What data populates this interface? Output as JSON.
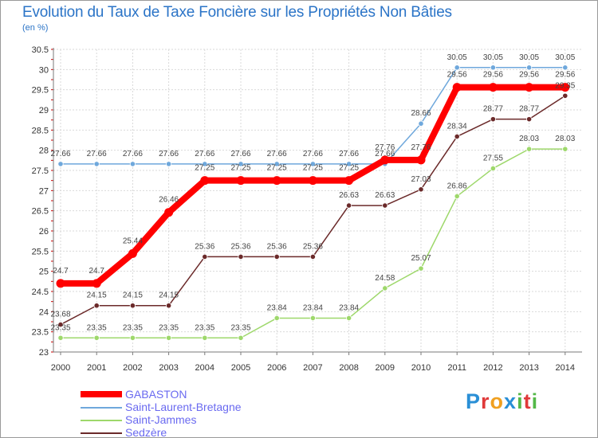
{
  "title": "Evolution du Taux de Taxe Foncière sur les Propriétés Non Bâties",
  "unit": "(en %)",
  "brand": {
    "letters": [
      "P",
      "r",
      "o",
      "x",
      "i",
      "t",
      "i"
    ]
  },
  "colors": {
    "gabaston": "#ff0000",
    "saint_laurent": "#6fa8dc",
    "saint_jammes": "#9ed86b",
    "sedzere": "#6b2a2a",
    "grid": "#d9d9d9",
    "axis": "#7a7a7a",
    "brand": [
      "#2a8fd6",
      "#e03a3a",
      "#f0a020",
      "#2a8fd6",
      "#54b848",
      "#e03a3a",
      "#54b848"
    ]
  },
  "chart_data": {
    "type": "line",
    "title": "Evolution du Taux de Taxe Foncière sur les Propriétés Non Bâties",
    "ylabel": "(en %)",
    "xlabel": "",
    "ylim": [
      23,
      30.5
    ],
    "ytick_labels": [
      "23",
      "23.5",
      "24",
      "24.5",
      "25",
      "25.5",
      "26",
      "26.5",
      "27",
      "27.5",
      "28",
      "28.5",
      "29",
      "29.5",
      "30",
      "30.5"
    ],
    "categories": [
      "2000",
      "2001",
      "2002",
      "2003",
      "2004",
      "2005",
      "2006",
      "2007",
      "2008",
      "2009",
      "2010",
      "2011",
      "2012",
      "2013",
      "2014"
    ],
    "series": [
      {
        "key": "saint_laurent",
        "name": "Saint-Laurent-Bretagne",
        "values": [
          27.66,
          27.66,
          27.66,
          27.66,
          27.66,
          27.66,
          27.66,
          27.66,
          27.66,
          27.66,
          28.66,
          30.05,
          30.05,
          30.05,
          30.05
        ],
        "labels": [
          "27.66",
          "27.66",
          "27.66",
          "27.66",
          "27.66",
          "27.66",
          "27.66",
          "27.66",
          "27.66",
          "27.66",
          "28.66",
          "30.05",
          "30.05",
          "30.05",
          "30.05"
        ]
      },
      {
        "key": "saint_jammes",
        "name": "Saint-Jammes",
        "values": [
          23.35,
          23.35,
          23.35,
          23.35,
          23.35,
          23.35,
          23.84,
          23.84,
          23.84,
          24.58,
          25.07,
          26.86,
          27.55,
          28.03,
          28.03
        ],
        "labels": [
          "23.35",
          "23.35",
          "23.35",
          "23.35",
          "23.35",
          "23.35",
          "23.84",
          "23.84",
          "23.84",
          "24.58",
          "25.07",
          "26.86",
          "27.55",
          "28.03",
          "28.03"
        ]
      },
      {
        "key": "sedzere",
        "name": "Sedzère",
        "values": [
          23.68,
          24.15,
          24.15,
          24.15,
          25.36,
          25.36,
          25.36,
          25.36,
          26.63,
          26.63,
          27.03,
          28.34,
          28.77,
          28.77,
          29.35
        ],
        "labels": [
          "23.68",
          "24.15",
          "24.15",
          "24.15",
          "25.36",
          "25.36",
          "25.36",
          "25.36",
          "26.63",
          "26.63",
          "27.03",
          "28.34",
          "28.77",
          "28.77",
          "29.35"
        ]
      },
      {
        "key": "gabaston",
        "name": "GABASTON",
        "values": [
          24.7,
          24.7,
          25.44,
          26.46,
          27.25,
          27.25,
          27.25,
          27.25,
          27.25,
          27.76,
          27.76,
          29.56,
          29.56,
          29.56,
          29.56
        ],
        "labels": [
          "24.7",
          "24.7",
          "25.44",
          "26.46",
          "27.25",
          "27.25",
          "27.25",
          "27.25",
          "27.25",
          "27.76",
          "27.76",
          "29.56",
          "29.56",
          "29.56",
          "29.56"
        ]
      }
    ],
    "legend": [
      "GABASTON",
      "Saint-Laurent-Bretagne",
      "Saint-Jammes",
      "Sedzère"
    ],
    "legend_position": "bottom-left",
    "grid": true
  }
}
